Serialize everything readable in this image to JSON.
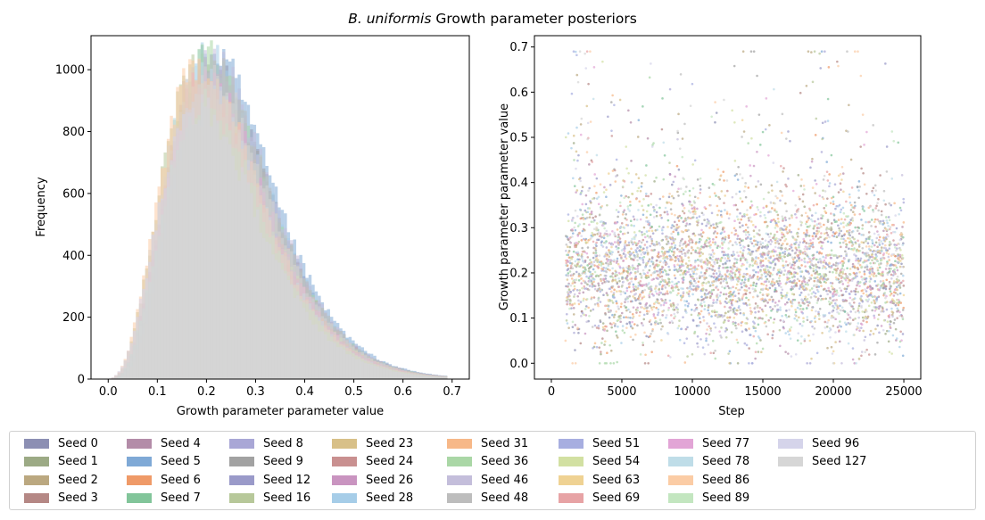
{
  "figure": {
    "title_italic": "B. uniformis",
    "title_rest": " Growth parameter posteriors"
  },
  "chart_data": [
    {
      "type": "histogram",
      "title": "",
      "xlabel": "Growth parameter parameter value",
      "ylabel": "Frequency",
      "xlim": [
        -0.035,
        0.735
      ],
      "ylim": [
        0,
        1110
      ],
      "xticks": [
        0.0,
        0.1,
        0.2,
        0.3,
        0.4,
        0.5,
        0.6,
        0.7
      ],
      "xtick_labels": [
        "0.0",
        "0.1",
        "0.2",
        "0.3",
        "0.4",
        "0.5",
        "0.6",
        "0.7"
      ],
      "yticks": [
        0,
        200,
        400,
        600,
        800,
        1000
      ],
      "ytick_labels": [
        "0",
        "200",
        "400",
        "600",
        "800",
        "1000"
      ],
      "distribution": {
        "mode": 0.2,
        "peak_frequency": 1060,
        "support": [
          0.0,
          0.69
        ],
        "right_tail": "long"
      },
      "series_note": "one overlaid translucent histogram per seed (see legend)"
    },
    {
      "type": "scatter",
      "title": "",
      "xlabel": "Step",
      "ylabel": "Growth parameter parameter value",
      "xlim": [
        -1200,
        26200
      ],
      "ylim": [
        -0.035,
        0.725
      ],
      "xticks": [
        0,
        5000,
        10000,
        15000,
        20000,
        25000
      ],
      "xtick_labels": [
        "0",
        "5000",
        "10000",
        "15000",
        "20000",
        "25000"
      ],
      "yticks": [
        0.0,
        0.1,
        0.2,
        0.3,
        0.4,
        0.5,
        0.6,
        0.7
      ],
      "ytick_labels": [
        "0.0",
        "0.1",
        "0.2",
        "0.3",
        "0.4",
        "0.5",
        "0.6",
        "0.7"
      ],
      "steps_range": [
        1000,
        25000
      ],
      "values_range": [
        0.0,
        0.69
      ],
      "typical_band": [
        0.1,
        0.35
      ]
    }
  ],
  "legend": {
    "items": [
      {
        "label": "Seed 0",
        "color": "#8c8fb3"
      },
      {
        "label": "Seed 1",
        "color": "#9caa85"
      },
      {
        "label": "Seed 2",
        "color": "#bba880"
      },
      {
        "label": "Seed 3",
        "color": "#b58885"
      },
      {
        "label": "Seed 4",
        "color": "#b38ca8"
      },
      {
        "label": "Seed 5",
        "color": "#7fa9d6"
      },
      {
        "label": "Seed 6",
        "color": "#ef9a68"
      },
      {
        "label": "Seed 7",
        "color": "#82c59a"
      },
      {
        "label": "Seed 8",
        "color": "#a9a7d6"
      },
      {
        "label": "Seed 9",
        "color": "#a2a2a2"
      },
      {
        "label": "Seed 12",
        "color": "#9a9ac9"
      },
      {
        "label": "Seed 16",
        "color": "#b7c89a"
      },
      {
        "label": "Seed 23",
        "color": "#d8c088"
      },
      {
        "label": "Seed 24",
        "color": "#c99090"
      },
      {
        "label": "Seed 26",
        "color": "#c994c0"
      },
      {
        "label": "Seed 28",
        "color": "#a6cde8"
      },
      {
        "label": "Seed 31",
        "color": "#f7b888"
      },
      {
        "label": "Seed 36",
        "color": "#aad7a6"
      },
      {
        "label": "Seed 46",
        "color": "#c4bedb"
      },
      {
        "label": "Seed 48",
        "color": "#bdbdbd"
      },
      {
        "label": "Seed 51",
        "color": "#a7aee0"
      },
      {
        "label": "Seed 54",
        "color": "#d2e0a2"
      },
      {
        "label": "Seed 63",
        "color": "#efd293"
      },
      {
        "label": "Seed 69",
        "color": "#e7a3a5"
      },
      {
        "label": "Seed 77",
        "color": "#e2a5d6"
      },
      {
        "label": "Seed 78",
        "color": "#bfdde8"
      },
      {
        "label": "Seed 86",
        "color": "#fbcca5"
      },
      {
        "label": "Seed 89",
        "color": "#c3e6c0"
      },
      {
        "label": "Seed 96",
        "color": "#d5d4ea"
      },
      {
        "label": "Seed 127",
        "color": "#d6d6d6"
      }
    ],
    "columns": 9,
    "rows": 4
  }
}
